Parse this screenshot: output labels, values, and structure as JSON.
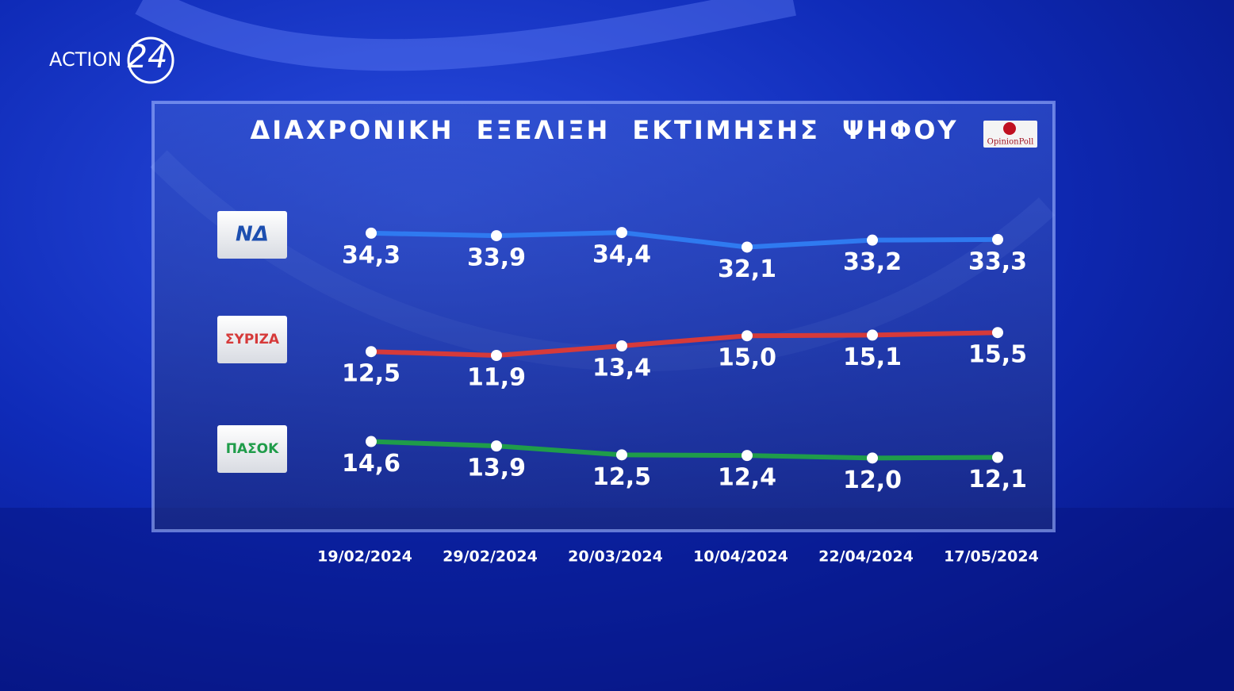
{
  "logo": {
    "text": "ACTION",
    "number": "24"
  },
  "chart_data": {
    "type": "line",
    "title": "ΔΙΑΧΡΟΝΙΚΗ ΕΞΕΛΙΞΗ ΕΚΤΙΜΗΣΗΣ ΨΗΦΟΥ",
    "source": "OpinionPoll",
    "categories": [
      "19/02/2024",
      "29/02/2024",
      "20/03/2024",
      "10/04/2024",
      "22/04/2024",
      "17/05/2024"
    ],
    "series": [
      {
        "name": "ΝΔ",
        "color": "#2f7af0",
        "values": [
          34.3,
          33.9,
          34.4,
          32.1,
          33.2,
          33.3
        ],
        "value_labels": [
          "34,3",
          "33,9",
          "34,4",
          "32,1",
          "33,2",
          "33,3"
        ]
      },
      {
        "name": "ΣΥΡΙΖΑ",
        "color": "#d63a3a",
        "values": [
          12.5,
          11.9,
          13.4,
          15.0,
          15.1,
          15.5
        ],
        "value_labels": [
          "12,5",
          "11,9",
          "13,4",
          "15,0",
          "15,1",
          "15,5"
        ]
      },
      {
        "name": "ΠΑΣΟΚ",
        "color": "#1f9c4a",
        "values": [
          14.6,
          13.9,
          12.5,
          12.4,
          12.0,
          12.1
        ],
        "value_labels": [
          "14,6",
          "13,9",
          "12,5",
          "12,4",
          "12,0",
          "12,1"
        ]
      }
    ]
  }
}
